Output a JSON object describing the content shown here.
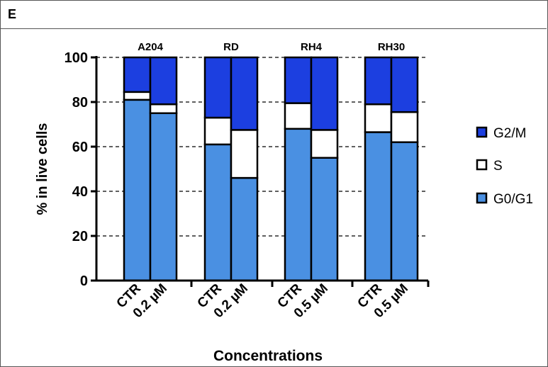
{
  "panel_label": "E",
  "chart_data": {
    "type": "bar",
    "stacked": true,
    "ylabel": "% in live cells",
    "xlabel": "Concentrations",
    "ylim": [
      0,
      100
    ],
    "yticks": [
      0,
      20,
      40,
      60,
      80,
      100
    ],
    "grid": "horizontal dashed",
    "legend_position": "right",
    "groups": [
      {
        "name": "A204",
        "bars": [
          {
            "label": "CTR",
            "G0/G1": 81,
            "S": 3.5,
            "G2/M": 15.5
          },
          {
            "label": "0.2 µM",
            "G0/G1": 75,
            "S": 4,
            "G2/M": 21
          }
        ]
      },
      {
        "name": "RD",
        "bars": [
          {
            "label": "CTR",
            "G0/G1": 61,
            "S": 12,
            "G2/M": 27
          },
          {
            "label": "0.2 µM",
            "G0/G1": 46,
            "S": 21.5,
            "G2/M": 32.5
          }
        ]
      },
      {
        "name": "RH4",
        "bars": [
          {
            "label": "CTR",
            "G0/G1": 68,
            "S": 11.5,
            "G2/M": 20.5
          },
          {
            "label": "0.5 µM",
            "G0/G1": 55,
            "S": 12.5,
            "G2/M": 32.5
          }
        ]
      },
      {
        "name": "RH30",
        "bars": [
          {
            "label": "CTR",
            "G0/G1": 66.5,
            "S": 12.5,
            "G2/M": 21
          },
          {
            "label": "0.5 µM",
            "G0/G1": 62,
            "S": 13.5,
            "G2/M": 24.5
          }
        ]
      }
    ],
    "series": [
      {
        "name": "G0/G1",
        "color": "#4a90e2"
      },
      {
        "name": "S",
        "color": "#ffffff"
      },
      {
        "name": "G2/M",
        "color": "#1c3fe0"
      }
    ],
    "legend_order": [
      "G2/M",
      "S",
      "G0/G1"
    ]
  }
}
